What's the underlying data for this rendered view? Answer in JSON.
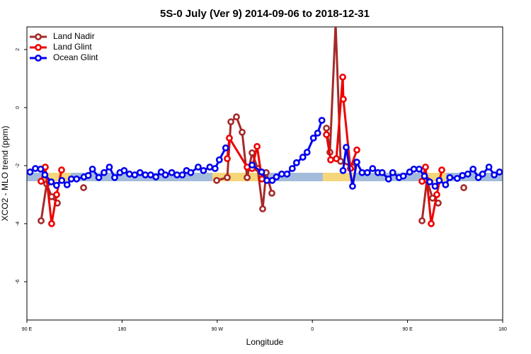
{
  "chart_data": {
    "type": "line",
    "title": "5S-0 July (Ver 9)   2014-09-06 to 2018-12-31",
    "x_label": "Longitude",
    "y_label": "XCO2 - MLO trend (ppm)",
    "xlim": [
      90,
      540
    ],
    "ylim": [
      -7.32,
      2.78
    ],
    "xticks": [
      {
        "value": 90,
        "label": "90 E"
      },
      {
        "value": 180,
        "label": "180"
      },
      {
        "value": 270,
        "label": "90 W"
      },
      {
        "value": 360,
        "label": "0"
      },
      {
        "value": 450,
        "label": "90 E"
      },
      {
        "value": 540,
        "label": "180"
      }
    ],
    "yticks": [
      -6,
      -4,
      -2,
      0,
      2
    ],
    "legend": "top-left",
    "series": [
      {
        "name": "Land Nadir",
        "color": "#a52a2a",
        "x": [
          103.4,
          108.7,
          113.4,
          118.8,
          130,
          143.6,
          200,
          269.5,
          279.5,
          282.9,
          288.2,
          293.6,
          298.3,
          303,
          308.3,
          313,
          316.3,
          321.7,
          350,
          373.3,
          376.6,
          382,
          386.7,
          398,
          430,
          463.7,
          468.3,
          473.7,
          479,
          490,
          503.2
        ],
        "values": [
          -3.9,
          -2.63,
          -3.07,
          -3.29,
          null,
          -2.76,
          null,
          -2.51,
          -2.41,
          -0.49,
          -0.32,
          -0.85,
          -2.41,
          -1.56,
          -2.1,
          -3.49,
          -2.24,
          -2.95,
          null,
          -0.71,
          -1.54,
          2.9,
          -1.85,
          -2.05,
          null,
          -3.9,
          -2.5,
          -3.12,
          -3.29,
          null,
          -2.76
        ]
      },
      {
        "name": "Land Glint",
        "color": "#ee0000",
        "x": [
          103.4,
          107.4,
          113.4,
          118.1,
          122.8,
          200,
          279.5,
          281.5,
          298.3,
          303,
          307.7,
          312.3,
          350,
          373.3,
          377.3,
          382.7,
          388.7,
          389.3,
          396,
          402.1,
          430,
          463.7,
          467,
          472.4,
          477.7,
          482.4
        ],
        "values": [
          -2.54,
          -2.05,
          -4.0,
          -3.0,
          -2.15,
          null,
          -1.76,
          -1.05,
          -2.05,
          -2.1,
          -1.34,
          -2.46,
          null,
          -0.93,
          -1.8,
          -1.76,
          1.05,
          0.29,
          -2.1,
          -1.46,
          null,
          -2.54,
          -2.05,
          -4.0,
          -3.0,
          -2.15
        ]
      },
      {
        "name": "Ocean Glint",
        "color": "#0000ee",
        "x": [
          93,
          98,
          103,
          107,
          113,
          118,
          123,
          128,
          132,
          137,
          144,
          148,
          152,
          158,
          163,
          168,
          173,
          178,
          182,
          187,
          192,
          197,
          202,
          207,
          212,
          217,
          221,
          227,
          232,
          237,
          241,
          245,
          252,
          257,
          263,
          268,
          272,
          278,
          290,
          303,
          312,
          317,
          322,
          326,
          331,
          336,
          341,
          345,
          351,
          355,
          361,
          365,
          369,
          380,
          389,
          392,
          398,
          402,
          407,
          412,
          417,
          422,
          426,
          432,
          436,
          442,
          446,
          452,
          456,
          461,
          466,
          471,
          476,
          480,
          486,
          490,
          497,
          502,
          507,
          512,
          517,
          521,
          527,
          532,
          537
        ],
        "values": [
          -2.22,
          -2.1,
          -2.12,
          -2.32,
          -2.56,
          -2.68,
          -2.51,
          -2.66,
          -2.46,
          -2.46,
          -2.39,
          -2.34,
          -2.12,
          -2.41,
          -2.24,
          -2.05,
          -2.41,
          -2.24,
          -2.17,
          -2.29,
          -2.32,
          -2.24,
          -2.32,
          -2.32,
          -2.39,
          -2.22,
          -2.32,
          -2.24,
          -2.32,
          -2.32,
          -2.17,
          -2.24,
          -2.05,
          -2.17,
          -2.05,
          -2.1,
          -1.8,
          -1.39,
          null,
          -1.98,
          -2.22,
          -2.51,
          -2.51,
          -2.39,
          -2.29,
          -2.29,
          -2.1,
          -1.9,
          -1.71,
          -1.54,
          -1.05,
          -0.88,
          -0.44,
          null,
          -2.17,
          -1.37,
          -2.71,
          -1.88,
          -2.24,
          -2.24,
          -2.1,
          -2.24,
          -2.24,
          -2.46,
          -2.24,
          -2.41,
          -2.36,
          -2.22,
          -2.12,
          -2.12,
          -2.36,
          -2.56,
          -2.71,
          -2.51,
          -2.66,
          -2.41,
          -2.44,
          -2.34,
          -2.29,
          -2.12,
          -2.41,
          -2.29,
          -2.05,
          -2.32,
          -2.22
        ]
      }
    ]
  }
}
